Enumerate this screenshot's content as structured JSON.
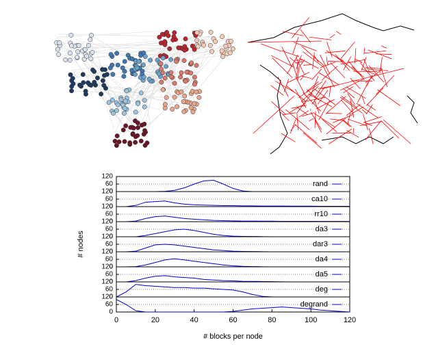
{
  "chart_data": {
    "type": "line",
    "layout": "stacked",
    "xlabel": "# blocks per node",
    "ylabel": "# nodes",
    "x": [
      0,
      5,
      10,
      15,
      20,
      25,
      30,
      35,
      40,
      45,
      50,
      55,
      60,
      65,
      70,
      75,
      80,
      85,
      90,
      95,
      100,
      105,
      110,
      115,
      120
    ],
    "xlim": [
      0,
      120
    ],
    "xticks": [
      0,
      20,
      40,
      60,
      80,
      100,
      120
    ],
    "ylim": [
      0,
      120
    ],
    "yticks": [
      0,
      60,
      120
    ],
    "grid": true,
    "series": [
      {
        "name": "rand",
        "color": "#0000cc",
        "values": [
          0,
          0,
          0,
          0,
          0,
          2,
          10,
          30,
          60,
          85,
          90,
          60,
          25,
          5,
          0,
          0,
          0,
          0,
          0,
          0,
          0,
          0,
          0,
          0,
          0
        ]
      },
      {
        "name": "ca10",
        "color": "#0000cc",
        "values": [
          0,
          0,
          10,
          35,
          40,
          45,
          30,
          20,
          15,
          12,
          10,
          8,
          8,
          6,
          6,
          5,
          5,
          5,
          4,
          4,
          4,
          3,
          3,
          3,
          3
        ]
      },
      {
        "name": "rr10",
        "color": "#0000cc",
        "values": [
          0,
          0,
          5,
          25,
          40,
          45,
          35,
          25,
          20,
          15,
          10,
          8,
          6,
          5,
          5,
          4,
          4,
          3,
          3,
          3,
          3,
          2,
          2,
          2,
          2
        ]
      },
      {
        "name": "da3",
        "color": "#0000cc",
        "values": [
          0,
          0,
          0,
          10,
          25,
          40,
          55,
          60,
          50,
          35,
          20,
          10,
          5,
          3,
          2,
          1,
          0,
          0,
          0,
          0,
          0,
          0,
          0,
          0,
          0
        ]
      },
      {
        "name": "dar3",
        "color": "#0000cc",
        "values": [
          0,
          0,
          5,
          30,
          55,
          60,
          55,
          45,
          35,
          25,
          15,
          10,
          5,
          3,
          2,
          1,
          0,
          0,
          0,
          0,
          0,
          0,
          0,
          0,
          0
        ]
      },
      {
        "name": "da4",
        "color": "#0000cc",
        "values": [
          0,
          0,
          2,
          15,
          35,
          55,
          65,
          55,
          45,
          35,
          25,
          15,
          8,
          4,
          2,
          1,
          0,
          0,
          0,
          0,
          0,
          0,
          0,
          0,
          0
        ]
      },
      {
        "name": "da5",
        "color": "#0000cc",
        "values": [
          0,
          0,
          10,
          30,
          45,
          50,
          40,
          35,
          30,
          20,
          15,
          10,
          8,
          5,
          4,
          3,
          2,
          1,
          0,
          0,
          0,
          0,
          0,
          0,
          0
        ]
      },
      {
        "name": "deg",
        "color": "#0000cc",
        "values": [
          0,
          40,
          100,
          90,
          85,
          80,
          75,
          75,
          70,
          70,
          65,
          60,
          55,
          40,
          20,
          5,
          0,
          0,
          0,
          0,
          0,
          0,
          0,
          0,
          0
        ]
      },
      {
        "name": "degrand",
        "color": "#0000cc",
        "values": [
          100,
          60,
          10,
          0,
          0,
          0,
          0,
          0,
          0,
          0,
          0,
          0,
          5,
          15,
          25,
          30,
          35,
          40,
          35,
          30,
          25,
          15,
          10,
          5,
          0
        ]
      }
    ]
  }
}
